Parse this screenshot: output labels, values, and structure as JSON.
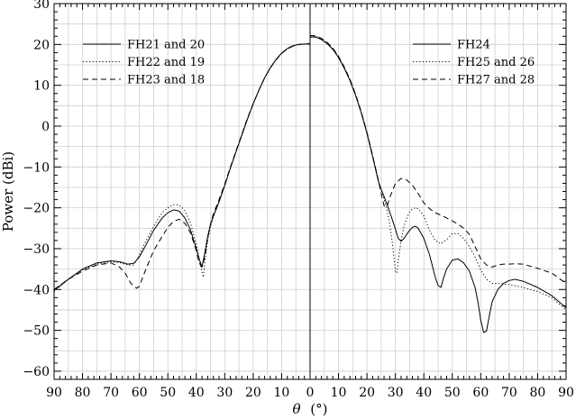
{
  "chart_data": {
    "type": "line",
    "xlabel_symbol": "θ",
    "xlabel_unit": "(°)",
    "ylabel": "Power (dBi)",
    "xlim": [
      -90,
      90
    ],
    "ylim": [
      -62,
      30
    ],
    "x_ticks": [
      -90,
      -80,
      -70,
      -60,
      -50,
      -40,
      -30,
      -20,
      -10,
      0,
      10,
      20,
      30,
      40,
      50,
      60,
      70,
      80,
      90
    ],
    "x_tick_labels": [
      "90",
      "80",
      "70",
      "60",
      "50",
      "40",
      "30",
      "20",
      "10",
      "0",
      "10",
      "20",
      "30",
      "40",
      "50",
      "60",
      "70",
      "80",
      "90"
    ],
    "y_ticks": [
      -60,
      -50,
      -40,
      -30,
      -20,
      -10,
      0,
      10,
      20,
      30
    ],
    "y_tick_labels": [
      "−60",
      "−50",
      "−40",
      "−30",
      "−20",
      "−10",
      "0",
      "10",
      "20",
      "30"
    ],
    "grid": true,
    "center_line_x": 0,
    "legends": [
      {
        "placement": "top-left",
        "entries": [
          {
            "label": "FH21 and 20",
            "style": "solid"
          },
          {
            "label": "FH22 and 19",
            "style": "dotted"
          },
          {
            "label": "FH23 and 18",
            "style": "dashed"
          }
        ]
      },
      {
        "placement": "top-right",
        "entries": [
          {
            "label": "FH24",
            "style": "solid"
          },
          {
            "label": "FH25 and 26",
            "style": "dotted"
          },
          {
            "label": "FH27 and 28",
            "style": "dashed"
          }
        ]
      }
    ],
    "series": [
      {
        "style": "solid",
        "panel": "left",
        "x": [
          -90,
          -85,
          -80,
          -75,
          -70,
          -67,
          -64,
          -62,
          -60,
          -58,
          -55,
          -52,
          -50,
          -48,
          -46,
          -44,
          -42,
          -40,
          -39,
          -38,
          -37,
          -36,
          -35,
          -34,
          -32,
          -30,
          -28,
          -26,
          -24,
          -22,
          -20,
          -18,
          -16,
          -14,
          -12,
          -10,
          -8,
          -6,
          -4,
          -2,
          0
        ],
        "y": [
          -40.2,
          -37.5,
          -35,
          -33.5,
          -33,
          -33.2,
          -33.8,
          -33.6,
          -32,
          -29.5,
          -25.5,
          -22.5,
          -21.2,
          -20.5,
          -20.8,
          -22.5,
          -25.5,
          -30,
          -32.5,
          -34.5,
          -31,
          -27,
          -24,
          -22,
          -18.5,
          -14.5,
          -10.2,
          -6.2,
          -2.2,
          1.8,
          5.5,
          8.8,
          11.8,
          14.3,
          16.3,
          17.9,
          19,
          19.7,
          20,
          20.1,
          20.1
        ]
      },
      {
        "style": "dotted",
        "panel": "left",
        "x": [
          -90,
          -85,
          -80,
          -75,
          -70,
          -67,
          -64,
          -62,
          -60,
          -58,
          -55,
          -52,
          -50,
          -48,
          -46,
          -44,
          -42,
          -40,
          -39,
          -38,
          -37.5,
          -37,
          -36,
          -35,
          -34,
          -32,
          -30,
          -28,
          -26,
          -24,
          -22,
          -20,
          -18,
          -16,
          -14,
          -12,
          -10,
          -8,
          -6,
          -4,
          -2,
          0
        ],
        "y": [
          -40.5,
          -37.5,
          -35.2,
          -33.8,
          -33.2,
          -33.4,
          -34,
          -34,
          -31.5,
          -28.5,
          -24.5,
          -21.2,
          -20,
          -19.2,
          -19.3,
          -20.7,
          -23.8,
          -29,
          -32.5,
          -35.8,
          -37,
          -33,
          -28,
          -24.5,
          -22.3,
          -18.6,
          -14.6,
          -10.3,
          -6.3,
          -2.3,
          1.7,
          5.4,
          8.7,
          11.7,
          14.2,
          16.2,
          17.8,
          18.9,
          19.6,
          20,
          20.1,
          20.1
        ]
      },
      {
        "style": "dashed",
        "panel": "left",
        "x": [
          -90,
          -85,
          -80,
          -75,
          -70,
          -67,
          -65,
          -63,
          -61,
          -60,
          -58,
          -55,
          -52,
          -50,
          -48,
          -46,
          -44,
          -42,
          -40,
          -39,
          -38,
          -37,
          -36,
          -35,
          -34,
          -32,
          -30,
          -28,
          -26,
          -24,
          -22,
          -20,
          -18,
          -16,
          -14,
          -12,
          -10,
          -8,
          -6,
          -4,
          -2,
          0
        ],
        "y": [
          -40,
          -37.5,
          -35.5,
          -34,
          -33.5,
          -34.5,
          -36,
          -38.5,
          -39.7,
          -39.2,
          -35.5,
          -30.5,
          -27,
          -24.8,
          -23.3,
          -22.8,
          -23.8,
          -26.2,
          -30.5,
          -33.5,
          -34.5,
          -32,
          -27.5,
          -24,
          -21.5,
          -18,
          -14.2,
          -10,
          -6,
          -2,
          2,
          5.5,
          8.8,
          11.8,
          14.2,
          16.2,
          17.8,
          18.9,
          19.6,
          20,
          20.1,
          20.2
        ]
      },
      {
        "style": "solid",
        "panel": "right",
        "x": [
          0,
          2,
          4,
          6,
          8,
          10,
          12,
          14,
          16,
          18,
          20,
          22,
          24,
          25,
          26,
          28,
          30,
          31,
          32,
          33,
          34,
          35,
          36,
          37,
          38,
          40,
          42,
          44,
          45,
          46,
          47,
          48,
          50,
          52,
          54,
          56,
          58,
          59,
          60,
          61,
          62,
          63,
          64,
          66,
          68,
          70,
          72,
          75,
          80,
          85,
          90
        ],
        "y": [
          21.8,
          21.8,
          21.2,
          20.2,
          18.8,
          16.8,
          14.2,
          11.2,
          7.5,
          3.2,
          -1.8,
          -7.5,
          -13.5,
          -15.5,
          -17.2,
          -21,
          -25.2,
          -27.5,
          -28.2,
          -27.5,
          -26.5,
          -25.5,
          -24.8,
          -24.5,
          -25,
          -27.5,
          -31.5,
          -37,
          -39,
          -39.5,
          -37,
          -35,
          -32.8,
          -32.5,
          -33.5,
          -35.5,
          -39.5,
          -43,
          -47.5,
          -50.5,
          -50.2,
          -46.5,
          -43,
          -40,
          -38.5,
          -37.8,
          -37.5,
          -38,
          -39.5,
          -41.5,
          -44.5
        ]
      },
      {
        "style": "dotted",
        "panel": "right",
        "x": [
          0,
          2,
          4,
          6,
          8,
          10,
          12,
          14,
          16,
          18,
          20,
          22,
          24,
          25,
          26,
          27,
          28,
          29,
          30,
          30.5,
          31,
          32,
          33,
          34,
          35,
          36,
          37,
          38,
          40,
          42,
          44,
          46,
          48,
          50,
          52,
          54,
          56,
          58,
          60,
          62,
          64,
          66,
          70,
          75,
          80,
          85,
          90
        ],
        "y": [
          22,
          22,
          21.4,
          20.4,
          19,
          17,
          14.4,
          11.4,
          7.7,
          3.4,
          -1.6,
          -7.3,
          -13.3,
          -15.5,
          -17.8,
          -20.5,
          -24,
          -29,
          -35.5,
          -36,
          -33,
          -28,
          -24.5,
          -22.5,
          -21,
          -20.3,
          -20,
          -20.2,
          -22,
          -25.5,
          -28,
          -28.8,
          -27.8,
          -26.3,
          -26.3,
          -27.5,
          -29.5,
          -32,
          -35.2,
          -37.5,
          -38.5,
          -38.5,
          -38.8,
          -39.5,
          -40.5,
          -42,
          -45
        ]
      },
      {
        "style": "dashed",
        "panel": "right",
        "x": [
          0,
          2,
          4,
          6,
          8,
          10,
          12,
          14,
          16,
          18,
          20,
          22,
          24,
          25,
          26,
          27,
          28,
          30,
          32,
          34,
          36,
          38,
          40,
          42,
          44,
          46,
          48,
          50,
          52,
          54,
          56,
          58,
          60,
          62,
          64,
          66,
          68,
          70,
          72,
          75,
          80,
          85,
          90
        ],
        "y": [
          22.2,
          22.1,
          21.5,
          20.5,
          19.1,
          17.1,
          14.5,
          11.5,
          7.8,
          3.5,
          -1.5,
          -7.2,
          -13.2,
          -16.5,
          -19.5,
          -19.8,
          -17.5,
          -14,
          -12.8,
          -13.2,
          -14.5,
          -16.5,
          -18.8,
          -20.2,
          -21.2,
          -21.8,
          -22.5,
          -23.2,
          -24,
          -25,
          -26.5,
          -29.5,
          -32.5,
          -34,
          -34.5,
          -34,
          -33.8,
          -33.8,
          -33.7,
          -33.8,
          -34.8,
          -36,
          -38.5
        ]
      }
    ]
  }
}
